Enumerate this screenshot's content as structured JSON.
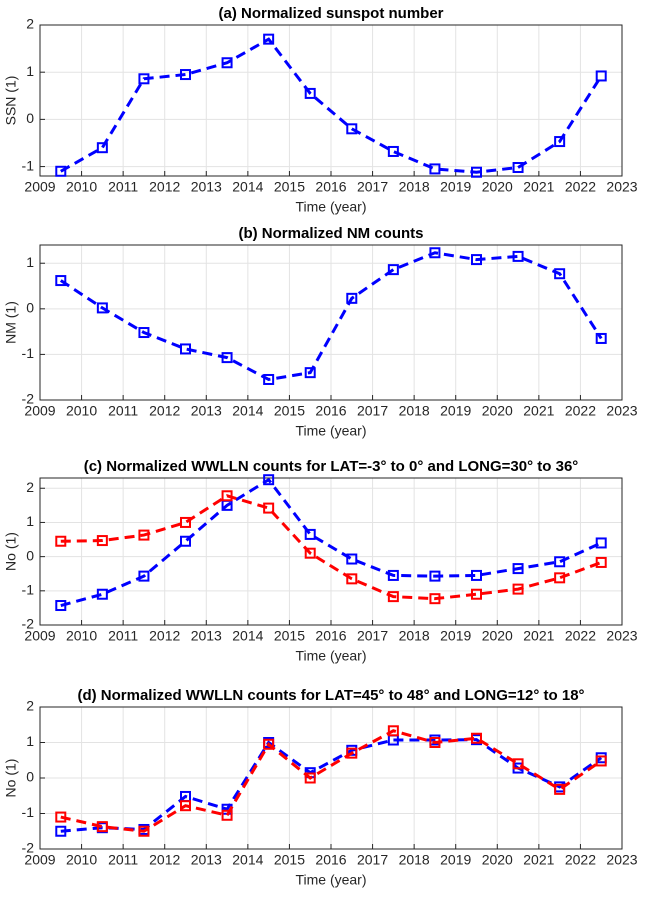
{
  "chart_data": [
    {
      "type": "line",
      "title": "(a) Normalized sunspot number",
      "xlabel": "Time (year)",
      "ylabel": "SSN (1)",
      "x": [
        2009.5,
        2010.5,
        2011.5,
        2012.5,
        2013.5,
        2014.5,
        2015.5,
        2016.5,
        2017.5,
        2018.5,
        2019.5,
        2020.5,
        2021.5,
        2022.5
      ],
      "series": [
        {
          "color": "#0000ff",
          "values": [
            -1.1,
            -0.6,
            0.86,
            0.95,
            1.2,
            1.7,
            0.55,
            -0.2,
            -0.68,
            -1.05,
            -1.12,
            -1.02,
            -0.47,
            0.92
          ]
        }
      ],
      "xlim": [
        2009,
        2023
      ],
      "xticks": [
        2009,
        2010,
        2011,
        2012,
        2013,
        2014,
        2015,
        2016,
        2017,
        2018,
        2019,
        2020,
        2021,
        2022,
        2023
      ],
      "ylim": [
        -1.2,
        2
      ],
      "yticks": [
        -1,
        0,
        1,
        2
      ],
      "grid": true
    },
    {
      "type": "line",
      "title": "(b) Normalized NM counts",
      "xlabel": "Time (year)",
      "ylabel": "NM (1)",
      "x": [
        2009.5,
        2010.5,
        2011.5,
        2012.5,
        2013.5,
        2014.5,
        2015.5,
        2016.5,
        2017.5,
        2018.5,
        2019.5,
        2020.5,
        2021.5,
        2022.5
      ],
      "series": [
        {
          "color": "#0000ff",
          "values": [
            0.62,
            0.02,
            -0.52,
            -0.88,
            -1.07,
            -1.55,
            -1.4,
            0.23,
            0.86,
            1.23,
            1.08,
            1.15,
            0.77,
            -0.65
          ]
        }
      ],
      "xlim": [
        2009,
        2023
      ],
      "xticks": [
        2009,
        2010,
        2011,
        2012,
        2013,
        2014,
        2015,
        2016,
        2017,
        2018,
        2019,
        2020,
        2021,
        2022,
        2023
      ],
      "ylim": [
        -2,
        1.4
      ],
      "yticks": [
        -2,
        -1,
        0,
        1
      ],
      "grid": true
    },
    {
      "type": "line",
      "title": "(c) Normalized WWLLN counts for LAT=-3° to 0° and LONG=30° to 36°",
      "xlabel": "Time (year)",
      "ylabel": "No (1)",
      "x": [
        2009.5,
        2010.5,
        2011.5,
        2012.5,
        2013.5,
        2014.5,
        2015.5,
        2016.5,
        2017.5,
        2018.5,
        2019.5,
        2020.5,
        2021.5,
        2022.5
      ],
      "series": [
        {
          "color": "#0000ff",
          "values": [
            -1.43,
            -1.1,
            -0.57,
            0.45,
            1.5,
            2.25,
            0.65,
            -0.07,
            -0.55,
            -0.57,
            -0.55,
            -0.35,
            -0.15,
            0.4
          ]
        },
        {
          "color": "#ff0000",
          "values": [
            0.45,
            0.47,
            0.63,
            1.0,
            1.78,
            1.42,
            0.1,
            -0.65,
            -1.17,
            -1.23,
            -1.1,
            -0.95,
            -0.62,
            -0.17
          ]
        }
      ],
      "xlim": [
        2009,
        2023
      ],
      "xticks": [
        2009,
        2010,
        2011,
        2012,
        2013,
        2014,
        2015,
        2016,
        2017,
        2018,
        2019,
        2020,
        2021,
        2022,
        2023
      ],
      "ylim": [
        -2,
        2.3
      ],
      "yticks": [
        -2,
        -1,
        0,
        1,
        2
      ],
      "grid": true
    },
    {
      "type": "line",
      "title": "(d) Normalized WWLLN counts for LAT=45° to 48° and LONG=12° to 18°",
      "xlabel": "Time (year)",
      "ylabel": "No (1)",
      "x": [
        2009.5,
        2010.5,
        2011.5,
        2012.5,
        2013.5,
        2014.5,
        2015.5,
        2016.5,
        2017.5,
        2018.5,
        2019.5,
        2020.5,
        2021.5,
        2022.5
      ],
      "series": [
        {
          "color": "#0000ff",
          "values": [
            -1.5,
            -1.4,
            -1.45,
            -0.52,
            -0.88,
            1.0,
            0.15,
            0.78,
            1.07,
            1.07,
            1.08,
            0.28,
            -0.25,
            0.57
          ]
        },
        {
          "color": "#ff0000",
          "values": [
            -1.1,
            -1.37,
            -1.5,
            -0.78,
            -1.05,
            0.95,
            0.0,
            0.7,
            1.33,
            1.0,
            1.12,
            0.4,
            -0.32,
            0.48
          ]
        }
      ],
      "xlim": [
        2009,
        2023
      ],
      "xticks": [
        2009,
        2010,
        2011,
        2012,
        2013,
        2014,
        2015,
        2016,
        2017,
        2018,
        2019,
        2020,
        2021,
        2022,
        2023
      ],
      "ylim": [
        -2,
        2
      ],
      "yticks": [
        -2,
        -1,
        0,
        1,
        2
      ],
      "grid": true
    }
  ]
}
